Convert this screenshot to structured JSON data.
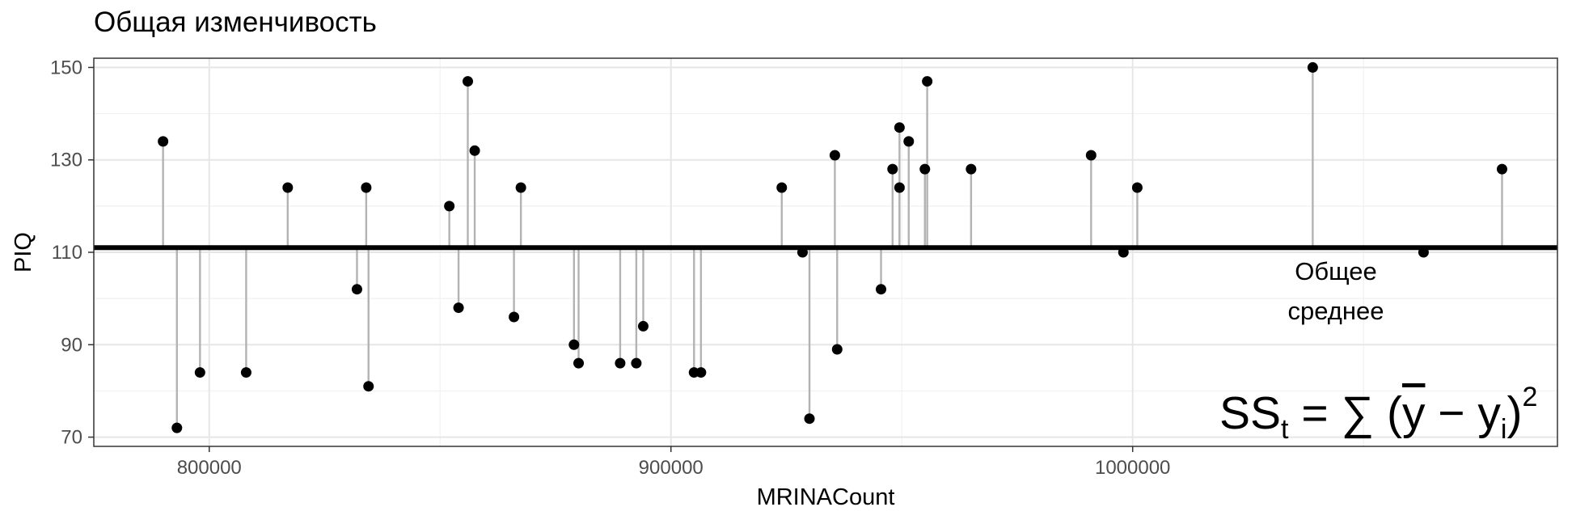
{
  "title": "Общая изменчивость",
  "annotation": {
    "label": "Общее\nсреднее",
    "formula": {
      "lhs": "SS",
      "lhs_sub": "t",
      "eq": " = ",
      "sum": "∑",
      "open": "(",
      "ybar": "y",
      "minus": " − ",
      "yi": "y",
      "yi_sub": "i",
      "close": ")",
      "power": "2"
    }
  },
  "chart_data": {
    "type": "scatter",
    "title": "Общая изменчивость",
    "xlabel": "MRINACount",
    "ylabel": "PIQ",
    "xlim": [
      775000,
      1092000
    ],
    "ylim": [
      68,
      152
    ],
    "x_ticks": [
      800000,
      900000,
      1000000
    ],
    "y_ticks": [
      70,
      90,
      110,
      130,
      150
    ],
    "grid": true,
    "mean_line": {
      "y": 111,
      "label": "Общее\nсреднее"
    },
    "points": [
      {
        "x": 790000,
        "y": 134
      },
      {
        "x": 793000,
        "y": 72
      },
      {
        "x": 798000,
        "y": 84
      },
      {
        "x": 808000,
        "y": 84
      },
      {
        "x": 817000,
        "y": 124
      },
      {
        "x": 832000,
        "y": 102
      },
      {
        "x": 834000,
        "y": 124
      },
      {
        "x": 834500,
        "y": 81
      },
      {
        "x": 852000,
        "y": 120
      },
      {
        "x": 854000,
        "y": 98
      },
      {
        "x": 856000,
        "y": 147
      },
      {
        "x": 857500,
        "y": 132
      },
      {
        "x": 866000,
        "y": 96
      },
      {
        "x": 867500,
        "y": 124
      },
      {
        "x": 879000,
        "y": 90
      },
      {
        "x": 880000,
        "y": 86
      },
      {
        "x": 889000,
        "y": 86
      },
      {
        "x": 892500,
        "y": 86
      },
      {
        "x": 894000,
        "y": 94
      },
      {
        "x": 905000,
        "y": 84
      },
      {
        "x": 906500,
        "y": 84
      },
      {
        "x": 924000,
        "y": 124
      },
      {
        "x": 928500,
        "y": 110
      },
      {
        "x": 930000,
        "y": 74
      },
      {
        "x": 935500,
        "y": 131
      },
      {
        "x": 936000,
        "y": 89
      },
      {
        "x": 945500,
        "y": 102
      },
      {
        "x": 948000,
        "y": 128
      },
      {
        "x": 949500,
        "y": 124
      },
      {
        "x": 949500,
        "y": 137
      },
      {
        "x": 951500,
        "y": 134
      },
      {
        "x": 955000,
        "y": 128
      },
      {
        "x": 955500,
        "y": 147
      },
      {
        "x": 965000,
        "y": 128
      },
      {
        "x": 991000,
        "y": 131
      },
      {
        "x": 998000,
        "y": 110
      },
      {
        "x": 1001000,
        "y": 124
      },
      {
        "x": 1039000,
        "y": 150
      },
      {
        "x": 1063000,
        "y": 110
      },
      {
        "x": 1080000,
        "y": 128
      }
    ]
  }
}
